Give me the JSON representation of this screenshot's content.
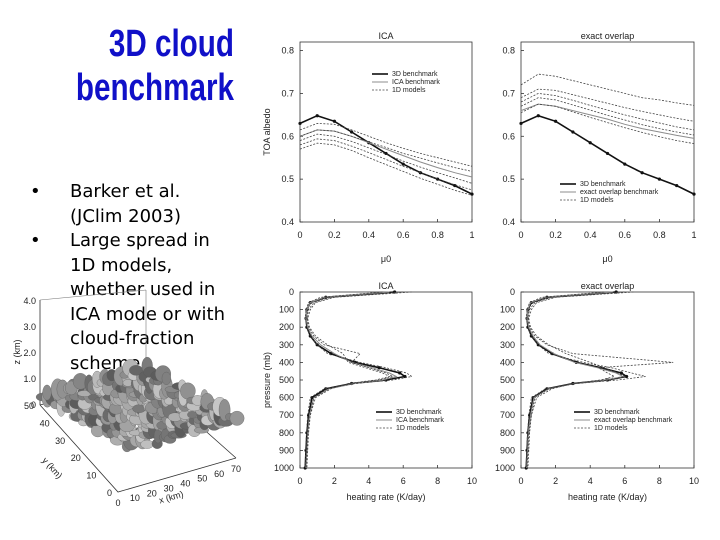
{
  "slide": {
    "title_line1": "3D cloud",
    "title_line2": "benchmark",
    "bullets": [
      "Barker et al. (JClim 2003)",
      "Large spread in 1D models, whether used in ICA mode or with cloud-fraction scheme"
    ]
  },
  "colors": {
    "title": "#1010c8",
    "benchmark": "#111111",
    "ref": "#8c8c8c",
    "models": "#444444"
  },
  "terrain_image": {
    "axis_labels": {
      "z": "z (km)",
      "y": "y (km)",
      "x": "x (km)"
    },
    "z_ticks": [
      "0",
      "1.0",
      "2.0",
      "3.0",
      "4.0"
    ],
    "x_ticks": [
      "0",
      "10",
      "20",
      "30",
      "40",
      "50",
      "60",
      "70"
    ],
    "y_ticks": [
      "0",
      "10",
      "20",
      "30",
      "40",
      "50"
    ]
  },
  "chart_data": [
    {
      "type": "line",
      "title": "ICA",
      "xlabel": "μ0",
      "ylabel": "TOA albedo",
      "xlim": [
        0,
        1
      ],
      "ylim": [
        0.4,
        0.82
      ],
      "xticks": [
        "0",
        "0.2",
        "0.4",
        "0.6",
        "0.8",
        "1"
      ],
      "yticks": [
        "0.4",
        "0.5",
        "0.6",
        "0.7",
        "0.8"
      ],
      "legend": [
        "3D benchmark",
        "ICA benchmark",
        "1D models"
      ],
      "legend_position": "top-right",
      "x": [
        0.0,
        0.1,
        0.2,
        0.3,
        0.4,
        0.5,
        0.6,
        0.7,
        0.8,
        0.9,
        1.0
      ],
      "series": [
        {
          "name": "3D benchmark",
          "style": "benchmark",
          "values": [
            0.63,
            0.648,
            0.635,
            0.61,
            0.585,
            0.56,
            0.535,
            0.515,
            0.5,
            0.485,
            0.465
          ]
        },
        {
          "name": "ICA benchmark",
          "style": "ref",
          "values": [
            0.6,
            0.615,
            0.612,
            0.6,
            0.585,
            0.57,
            0.555,
            0.54,
            0.527,
            0.515,
            0.505
          ]
        },
        {
          "style": "models",
          "values": [
            0.615,
            0.63,
            0.628,
            0.615,
            0.6,
            0.585,
            0.572,
            0.56,
            0.55,
            0.54,
            0.53
          ]
        },
        {
          "style": "models",
          "values": [
            0.6,
            0.615,
            0.612,
            0.6,
            0.587,
            0.574,
            0.56,
            0.549,
            0.538,
            0.527,
            0.518
          ]
        },
        {
          "style": "models",
          "values": [
            0.59,
            0.605,
            0.6,
            0.588,
            0.573,
            0.558,
            0.542,
            0.528,
            0.515,
            0.503,
            0.49
          ]
        },
        {
          "style": "models",
          "values": [
            0.58,
            0.594,
            0.59,
            0.577,
            0.562,
            0.546,
            0.53,
            0.515,
            0.5,
            0.487,
            0.475
          ]
        },
        {
          "style": "models",
          "values": [
            0.57,
            0.584,
            0.58,
            0.567,
            0.55,
            0.534,
            0.518,
            0.502,
            0.488,
            0.474,
            0.462
          ]
        }
      ]
    },
    {
      "type": "line",
      "title": "exact overlap",
      "xlabel": "μ0",
      "ylabel": "",
      "xlim": [
        0,
        1
      ],
      "ylim": [
        0.4,
        0.82
      ],
      "xticks": [
        "0",
        "0.2",
        "0.4",
        "0.6",
        "0.8",
        "1"
      ],
      "yticks": [
        "0.4",
        "0.5",
        "0.6",
        "0.7",
        "0.8"
      ],
      "legend": [
        "3D benchmark",
        "exact overlap benchmark",
        "1D models"
      ],
      "legend_position": "bottom-right",
      "x": [
        0.0,
        0.1,
        0.2,
        0.3,
        0.4,
        0.5,
        0.6,
        0.7,
        0.8,
        0.9,
        1.0
      ],
      "series": [
        {
          "name": "3D benchmark",
          "style": "benchmark",
          "values": [
            0.63,
            0.648,
            0.635,
            0.61,
            0.585,
            0.56,
            0.535,
            0.515,
            0.5,
            0.485,
            0.465
          ]
        },
        {
          "name": "exact overlap benchmark",
          "style": "ref",
          "values": [
            0.66,
            0.675,
            0.67,
            0.66,
            0.65,
            0.64,
            0.628,
            0.618,
            0.61,
            0.602,
            0.595
          ]
        },
        {
          "style": "models",
          "values": [
            0.72,
            0.745,
            0.74,
            0.73,
            0.72,
            0.71,
            0.7,
            0.69,
            0.685,
            0.678,
            0.672
          ]
        },
        {
          "style": "models",
          "values": [
            0.69,
            0.71,
            0.707,
            0.697,
            0.687,
            0.677,
            0.667,
            0.658,
            0.65,
            0.642,
            0.635
          ]
        },
        {
          "style": "models",
          "values": [
            0.68,
            0.7,
            0.695,
            0.684,
            0.672,
            0.661,
            0.65,
            0.64,
            0.631,
            0.622,
            0.615
          ]
        },
        {
          "style": "models",
          "values": [
            0.67,
            0.69,
            0.685,
            0.673,
            0.661,
            0.649,
            0.638,
            0.627,
            0.618,
            0.61,
            0.603
          ]
        },
        {
          "style": "models",
          "values": [
            0.655,
            0.675,
            0.67,
            0.657,
            0.644,
            0.632,
            0.62,
            0.609,
            0.599,
            0.59,
            0.583
          ]
        }
      ]
    },
    {
      "type": "line",
      "title": "ICA",
      "xlabel": "heating rate (K/day)",
      "ylabel": "pressure (mb)",
      "xlim": [
        0,
        10
      ],
      "ylim": [
        1000,
        0
      ],
      "xticks": [
        "0",
        "2",
        "4",
        "6",
        "8",
        "10"
      ],
      "yticks": [
        "0",
        "100",
        "200",
        "300",
        "400",
        "500",
        "600",
        "700",
        "800",
        "900",
        "1000"
      ],
      "legend": [
        "3D benchmark",
        "ICA benchmark",
        "1D models"
      ],
      "legend_position": "bottom-right",
      "y": [
        0,
        30,
        60,
        100,
        150,
        200,
        250,
        300,
        350,
        400,
        430,
        460,
        480,
        500,
        520,
        550,
        600,
        700,
        800,
        900,
        1000
      ],
      "series": [
        {
          "name": "3D benchmark",
          "style": "benchmark",
          "values": [
            5.5,
            1.5,
            0.6,
            0.4,
            0.35,
            0.4,
            0.6,
            1.0,
            1.8,
            3.2,
            4.6,
            5.8,
            6.1,
            5.0,
            3.0,
            1.5,
            0.7,
            0.5,
            0.4,
            0.35,
            0.3
          ]
        },
        {
          "name": "ICA benchmark",
          "style": "ref",
          "values": [
            5.2,
            1.4,
            0.6,
            0.4,
            0.35,
            0.45,
            0.7,
            1.2,
            2.0,
            3.0,
            4.2,
            5.2,
            5.6,
            4.8,
            3.2,
            1.7,
            0.8,
            0.55,
            0.45,
            0.4,
            0.35
          ]
        },
        {
          "style": "models",
          "values": [
            6.0,
            1.8,
            0.8,
            0.5,
            0.4,
            0.5,
            0.8,
            1.4,
            3.5,
            3.0,
            4.0,
            5.0,
            5.4,
            4.6,
            3.0,
            1.6,
            0.8,
            0.6,
            0.45,
            0.4,
            0.35
          ]
        },
        {
          "style": "models",
          "values": [
            4.8,
            1.2,
            0.5,
            0.35,
            0.3,
            0.4,
            0.6,
            1.0,
            1.6,
            3.5,
            5.0,
            6.2,
            6.5,
            5.4,
            3.2,
            1.4,
            0.6,
            0.45,
            0.38,
            0.32,
            0.3
          ]
        },
        {
          "style": "models",
          "values": [
            6.5,
            2.0,
            0.9,
            0.6,
            0.45,
            0.55,
            0.9,
            1.6,
            2.5,
            2.8,
            3.8,
            4.8,
            5.2,
            4.4,
            2.8,
            1.8,
            0.9,
            0.6,
            0.5,
            0.45,
            0.4
          ]
        }
      ]
    },
    {
      "type": "line",
      "title": "exact overlap",
      "xlabel": "heating rate (K/day)",
      "ylabel": "",
      "xlim": [
        0,
        10
      ],
      "ylim": [
        1000,
        0
      ],
      "xticks": [
        "0",
        "2",
        "4",
        "6",
        "8",
        "10"
      ],
      "yticks": [
        "0",
        "100",
        "200",
        "300",
        "400",
        "500",
        "600",
        "700",
        "800",
        "900",
        "1000"
      ],
      "legend": [
        "3D benchmark",
        "exact overlap benchmark",
        "1D models"
      ],
      "legend_position": "bottom-right",
      "y": [
        0,
        30,
        60,
        100,
        150,
        200,
        250,
        300,
        350,
        400,
        430,
        460,
        480,
        500,
        520,
        550,
        600,
        700,
        800,
        900,
        1000
      ],
      "series": [
        {
          "name": "3D benchmark",
          "style": "benchmark",
          "values": [
            5.5,
            1.5,
            0.6,
            0.4,
            0.35,
            0.4,
            0.6,
            1.0,
            1.8,
            3.2,
            4.6,
            5.8,
            6.1,
            5.0,
            3.0,
            1.5,
            0.7,
            0.5,
            0.4,
            0.35,
            0.3
          ]
        },
        {
          "name": "exact overlap benchmark",
          "style": "ref",
          "values": [
            5.3,
            1.4,
            0.55,
            0.4,
            0.35,
            0.45,
            0.7,
            1.1,
            1.9,
            3.1,
            4.4,
            5.5,
            5.9,
            4.9,
            3.1,
            1.6,
            0.75,
            0.55,
            0.42,
            0.38,
            0.33
          ]
        },
        {
          "style": "models",
          "values": [
            6.0,
            1.8,
            0.8,
            0.5,
            0.4,
            0.5,
            0.8,
            1.5,
            3.0,
            8.8,
            4.5,
            5.0,
            5.4,
            4.6,
            3.0,
            1.6,
            0.8,
            0.6,
            0.45,
            0.4,
            0.35
          ]
        },
        {
          "style": "models",
          "values": [
            4.8,
            1.2,
            0.5,
            0.35,
            0.3,
            0.4,
            0.6,
            1.0,
            1.6,
            3.6,
            5.2,
            6.4,
            7.2,
            5.6,
            3.2,
            1.4,
            0.6,
            0.45,
            0.38,
            0.32,
            0.3
          ]
        },
        {
          "style": "models",
          "values": [
            6.5,
            2.0,
            0.9,
            0.6,
            0.45,
            0.55,
            0.9,
            1.6,
            2.6,
            4.0,
            4.8,
            5.6,
            6.0,
            5.0,
            3.0,
            1.8,
            0.9,
            0.6,
            0.5,
            0.45,
            0.4
          ]
        }
      ]
    }
  ]
}
